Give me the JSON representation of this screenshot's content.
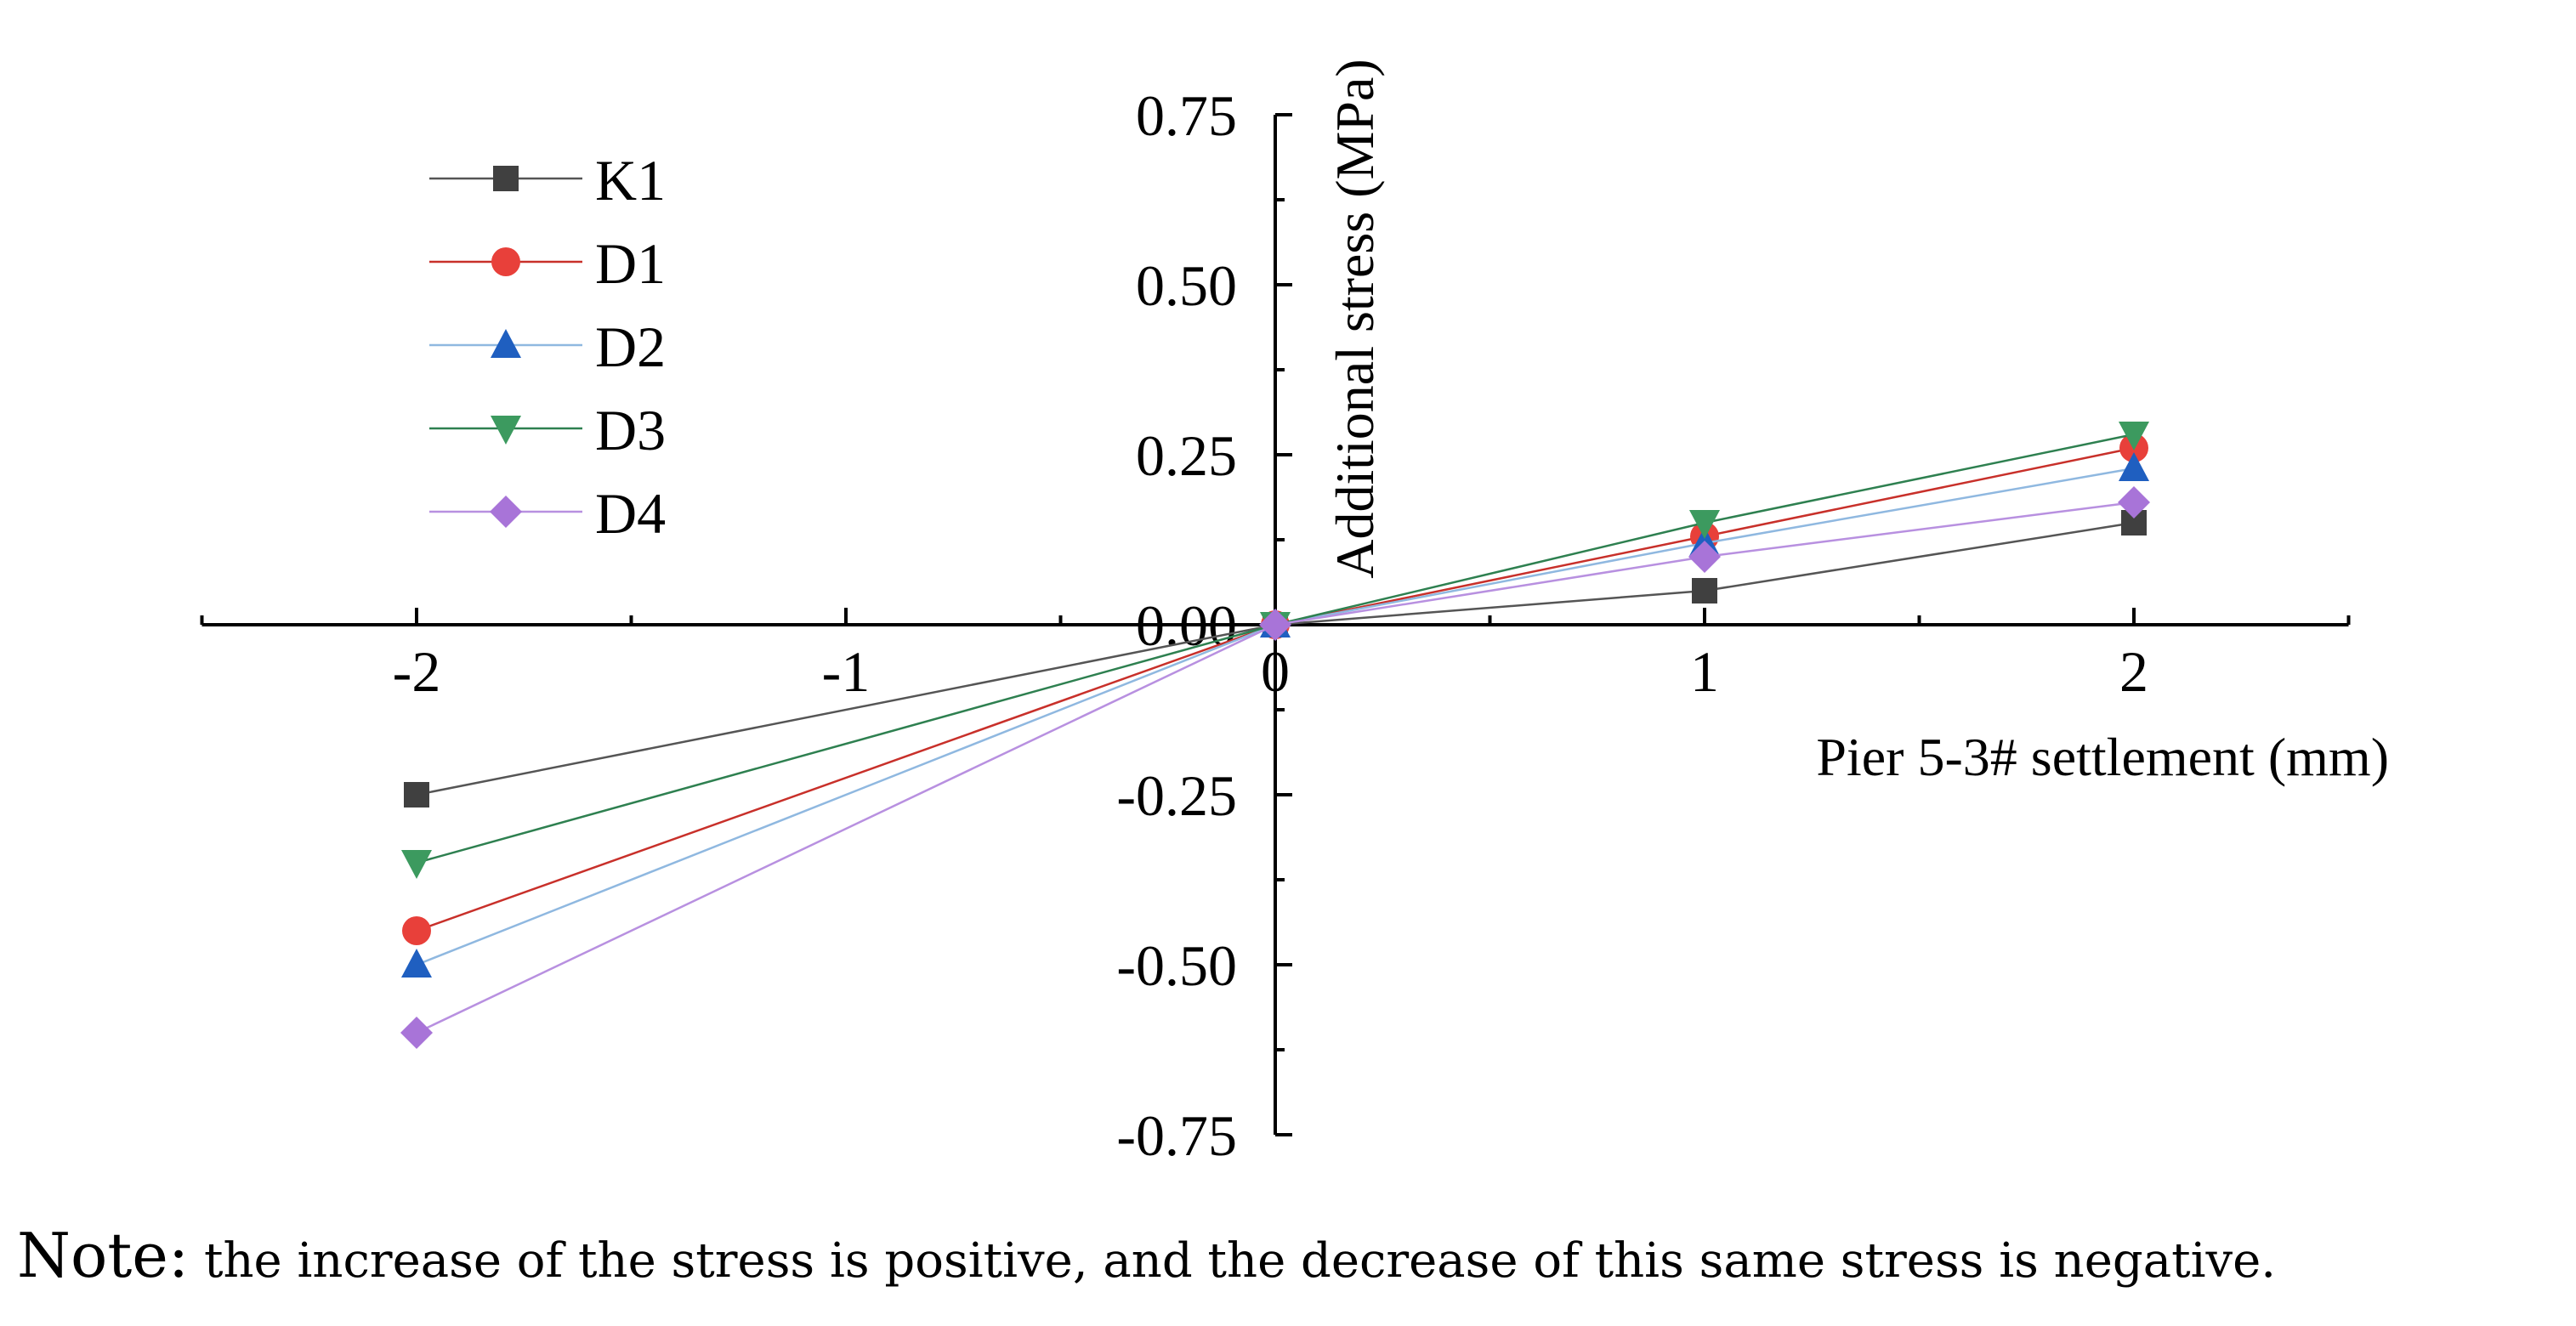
{
  "chart_data": {
    "type": "line",
    "title": "",
    "xlabel": "Pier 5-3#  settlement (mm)",
    "ylabel": "Additional stress (MPa)",
    "x": [
      -2,
      0,
      1,
      2
    ],
    "xlim": [
      -2.5,
      2.5
    ],
    "ylim": [
      -0.75,
      0.75
    ],
    "xticks": [
      -2,
      -1,
      0,
      1,
      2
    ],
    "xtick_labels": [
      "-2",
      "-1",
      "0",
      "1",
      "2"
    ],
    "yticks": [
      -0.75,
      -0.5,
      -0.25,
      0,
      0.25,
      0.5,
      0.75
    ],
    "ytick_labels": [
      "-0.75",
      "-0.50",
      "-0.25",
      "0.00",
      "0.25",
      "0.50",
      "0.75"
    ],
    "legend_position": "top-left",
    "grid": false,
    "series": [
      {
        "name": "K1",
        "marker": "square",
        "color": "#404040",
        "line_color": "#555555",
        "values": [
          -0.25,
          0,
          0.05,
          0.15
        ]
      },
      {
        "name": "D1",
        "marker": "circle",
        "color": "#E8403A",
        "line_color": "#C8302A",
        "values": [
          -0.45,
          0,
          0.13,
          0.26
        ]
      },
      {
        "name": "D2",
        "marker": "triangle-up",
        "color": "#1F5FC0",
        "line_color": "#8FB8E0",
        "values": [
          -0.5,
          0,
          0.12,
          0.23
        ]
      },
      {
        "name": "D3",
        "marker": "triangle-down",
        "color": "#3C9A5F",
        "line_color": "#2E8050",
        "values": [
          -0.35,
          0,
          0.15,
          0.28
        ]
      },
      {
        "name": "D4",
        "marker": "diamond",
        "color": "#A874D8",
        "line_color": "#B890E0",
        "values": [
          -0.6,
          0,
          0.1,
          0.18
        ]
      }
    ]
  },
  "note": {
    "label": "Note:",
    "text": " the increase of the stress is positive, and the decrease of this same stress is negative."
  }
}
